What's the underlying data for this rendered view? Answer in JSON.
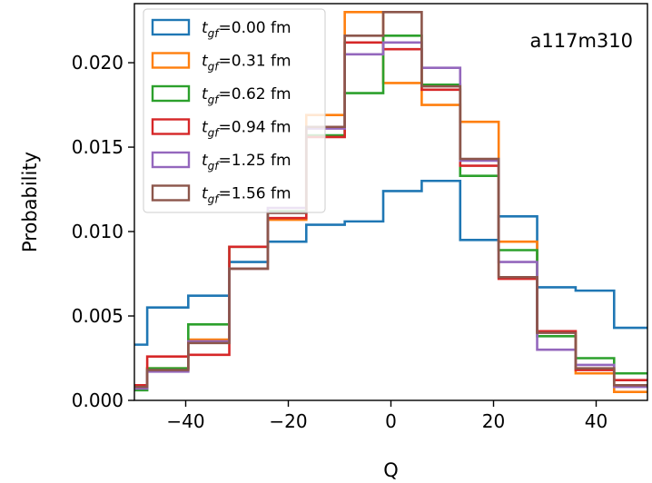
{
  "chart_data": {
    "type": "step-histogram",
    "xlabel": "Q",
    "ylabel": "Probability",
    "annotation": "a117m310",
    "xlim": [
      -50,
      50
    ],
    "ylim": [
      0,
      0.0235
    ],
    "x_ticks": [
      -40,
      -20,
      0,
      20,
      40
    ],
    "x_tick_labels": [
      "−40",
      "−20",
      "0",
      "20",
      "40"
    ],
    "y_ticks": [
      0,
      0.005,
      0.01,
      0.015,
      0.02
    ],
    "y_tick_labels": [
      "0.000",
      "0.005",
      "0.010",
      "0.015",
      "0.020"
    ],
    "bin_edges": [
      -55.5,
      -47.5,
      -39.5,
      -31.5,
      -24,
      -16.5,
      -9,
      -1.5,
      6,
      13.5,
      21,
      28.5,
      36,
      43.5,
      51.5
    ],
    "legend_position": "top-left",
    "series": [
      {
        "label_sym": "t",
        "label_sub": "gf",
        "label_value": "=0.00 fm",
        "color": "#1f77b4",
        "values": [
          0.0033,
          0.0055,
          0.0062,
          0.0082,
          0.0094,
          0.0104,
          0.0106,
          0.0124,
          0.013,
          0.0095,
          0.0109,
          0.0067,
          0.0065,
          0.0043
        ]
      },
      {
        "label_sym": "t",
        "label_sub": "gf",
        "label_value": "=0.31 fm",
        "color": "#ff7f0e",
        "values": [
          0.0008,
          0.0019,
          0.0036,
          0.0078,
          0.0107,
          0.0169,
          0.023,
          0.0188,
          0.0175,
          0.0165,
          0.0094,
          0.0041,
          0.0016,
          0.0005
        ]
      },
      {
        "label_sym": "t",
        "label_sub": "gf",
        "label_value": "=0.62 fm",
        "color": "#2ca02c",
        "values": [
          0.0006,
          0.0019,
          0.0045,
          0.0091,
          0.0112,
          0.0157,
          0.0182,
          0.0216,
          0.0187,
          0.0133,
          0.0089,
          0.0038,
          0.0025,
          0.0016
        ]
      },
      {
        "label_sym": "t",
        "label_sub": "gf",
        "label_value": "=0.94 fm",
        "color": "#d62728",
        "values": [
          0.0009,
          0.0026,
          0.0027,
          0.0091,
          0.0108,
          0.0156,
          0.0212,
          0.0208,
          0.0184,
          0.0139,
          0.0072,
          0.0041,
          0.0018,
          0.0012
        ]
      },
      {
        "label_sym": "t",
        "label_sub": "gf",
        "label_value": "=1.25 fm",
        "color": "#9467bd",
        "values": [
          0.0007,
          0.0017,
          0.0035,
          0.0078,
          0.0114,
          0.0161,
          0.0205,
          0.0212,
          0.0197,
          0.0142,
          0.0082,
          0.003,
          0.0021,
          0.0008
        ]
      },
      {
        "label_sym": "t",
        "label_sub": "gf",
        "label_value": "=1.56 fm",
        "color": "#8c564b",
        "values": [
          0.0008,
          0.0018,
          0.0034,
          0.0078,
          0.0111,
          0.0162,
          0.0216,
          0.023,
          0.0186,
          0.0143,
          0.0073,
          0.004,
          0.0019,
          0.0009
        ]
      }
    ]
  }
}
